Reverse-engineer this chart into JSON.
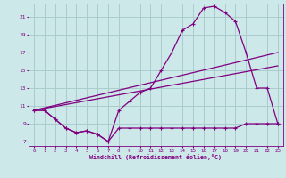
{
  "xlabel": "Windchill (Refroidissement éolien,°C)",
  "bg_color": "#cce8e8",
  "line_color": "#800080",
  "grid_color": "#aacccc",
  "line1_x": [
    0,
    1,
    2,
    3,
    4,
    5,
    6,
    7,
    8,
    9,
    10,
    11,
    12,
    13,
    14,
    15,
    16,
    17,
    18,
    19,
    20,
    21,
    22,
    23
  ],
  "line1_y": [
    10.5,
    10.5,
    9.5,
    8.5,
    8.0,
    8.2,
    7.8,
    7.0,
    10.5,
    11.5,
    12.5,
    13.0,
    15.0,
    17.0,
    19.5,
    20.2,
    22.0,
    22.2,
    21.5,
    20.5,
    17.0,
    13.0,
    13.0,
    9.0
  ],
  "line2_x": [
    0,
    1,
    2,
    3,
    4,
    5,
    6,
    7,
    8,
    9,
    10,
    11,
    12,
    13,
    14,
    15,
    16,
    17,
    18,
    19,
    20,
    21,
    22,
    23
  ],
  "line2_y": [
    10.5,
    10.5,
    9.5,
    8.5,
    8.0,
    8.2,
    7.8,
    7.0,
    8.5,
    8.5,
    8.5,
    8.5,
    8.5,
    8.5,
    8.5,
    8.5,
    8.5,
    8.5,
    8.5,
    8.5,
    9.0,
    9.0,
    9.0,
    9.0
  ],
  "line3_x": [
    0,
    23
  ],
  "line3_y": [
    10.5,
    17.0
  ],
  "line4_x": [
    0,
    23
  ],
  "line4_y": [
    10.5,
    15.5
  ],
  "ylim": [
    6.5,
    22.5
  ],
  "xlim": [
    -0.5,
    23.5
  ],
  "yticks": [
    7,
    9,
    11,
    13,
    15,
    17,
    19,
    21
  ],
  "xticks": [
    0,
    1,
    2,
    3,
    4,
    5,
    6,
    7,
    8,
    9,
    10,
    11,
    12,
    13,
    14,
    15,
    16,
    17,
    18,
    19,
    20,
    21,
    22,
    23
  ]
}
